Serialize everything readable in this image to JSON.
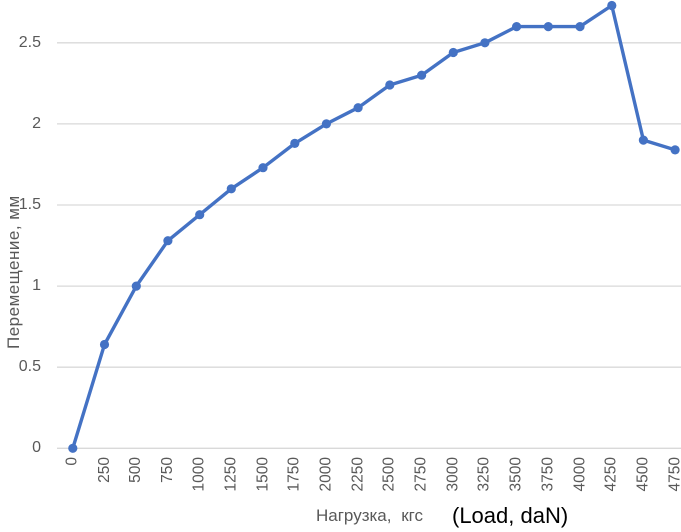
{
  "chart_data": {
    "type": "line",
    "title": "",
    "ylabel": "Перемещение, мм",
    "xlabel": "Нагрузка, кгс",
    "xlabel_annotation": "(Load, daN)",
    "x": [
      0,
      250,
      500,
      750,
      1000,
      1250,
      1500,
      1750,
      2000,
      2250,
      2500,
      2750,
      3000,
      3250,
      3500,
      3750,
      4000,
      4250,
      4500,
      4750
    ],
    "x_tick_labels": [
      "0",
      "250",
      "500",
      "750",
      "1000",
      "1250",
      "1500",
      "1750",
      "2000",
      "2250",
      "2500",
      "2750",
      "3000",
      "3250",
      "3500",
      "3750",
      "4000",
      "4250",
      "4500",
      "4750"
    ],
    "values": [
      0,
      0.64,
      1.0,
      1.28,
      1.44,
      1.6,
      1.73,
      1.88,
      2.0,
      2.1,
      2.24,
      2.3,
      2.44,
      2.5,
      2.6,
      2.6,
      2.6,
      2.73,
      1.9,
      1.84
    ],
    "y_ticks": [
      0,
      0.5,
      1,
      1.5,
      2,
      2.5
    ],
    "y_tick_labels": [
      "0",
      "0.5",
      "1",
      "1.5",
      "2",
      "2.5"
    ],
    "ylim": [
      0,
      2.77
    ],
    "grid": true,
    "legend": "none",
    "marker": "circle",
    "colors": {
      "line": "#4472C4",
      "marker": "#4472C4",
      "gridline": "#D9D9D9",
      "tick_label": "#595959",
      "axis_title": "#595959",
      "annotation": "#000000",
      "background": "#FFFFFF"
    }
  }
}
